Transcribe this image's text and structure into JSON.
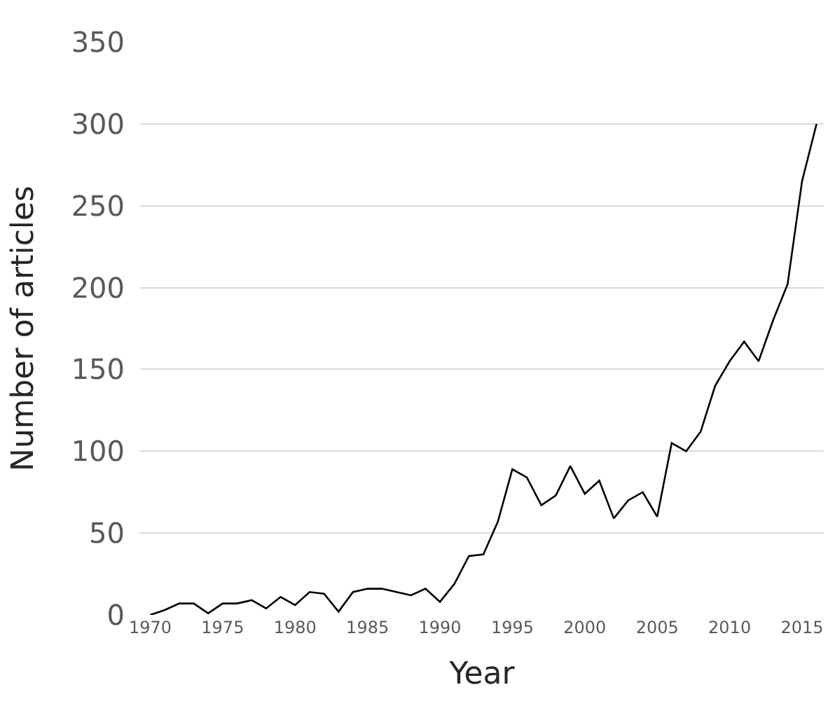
{
  "chart_data": {
    "type": "line",
    "xlabel": "Year",
    "ylabel": "Number of articles",
    "x": [
      1970,
      1971,
      1972,
      1973,
      1974,
      1975,
      1976,
      1977,
      1978,
      1979,
      1980,
      1981,
      1982,
      1983,
      1984,
      1985,
      1986,
      1987,
      1988,
      1989,
      1990,
      1991,
      1992,
      1993,
      1994,
      1995,
      1996,
      1997,
      1998,
      1999,
      2000,
      2001,
      2002,
      2003,
      2004,
      2005,
      2006,
      2007,
      2008,
      2009,
      2010,
      2011,
      2012,
      2013,
      2014,
      2015,
      2016
    ],
    "series": [
      {
        "color": "#000000",
        "values": [
          0,
          3,
          7,
          7,
          1,
          7,
          7,
          9,
          4,
          11,
          6,
          14,
          13,
          2,
          14,
          16,
          16,
          14,
          12,
          16,
          8,
          19,
          36,
          37,
          57,
          89,
          84,
          67,
          73,
          91,
          74,
          82,
          59,
          70,
          75,
          60,
          105,
          100,
          112,
          140,
          155,
          167,
          155,
          180,
          202,
          265,
          300
        ]
      }
    ],
    "xlim": [
      1969.3,
      2016.5
    ],
    "xticks": [
      1970,
      1975,
      1980,
      1985,
      1990,
      1995,
      2000,
      2005,
      2010,
      2015
    ],
    "ylim": [
      0,
      350
    ],
    "yticks": [
      0,
      50,
      100,
      150,
      200,
      250,
      300,
      350
    ],
    "grid": "y",
    "marker": "none",
    "line_style": "solid"
  }
}
